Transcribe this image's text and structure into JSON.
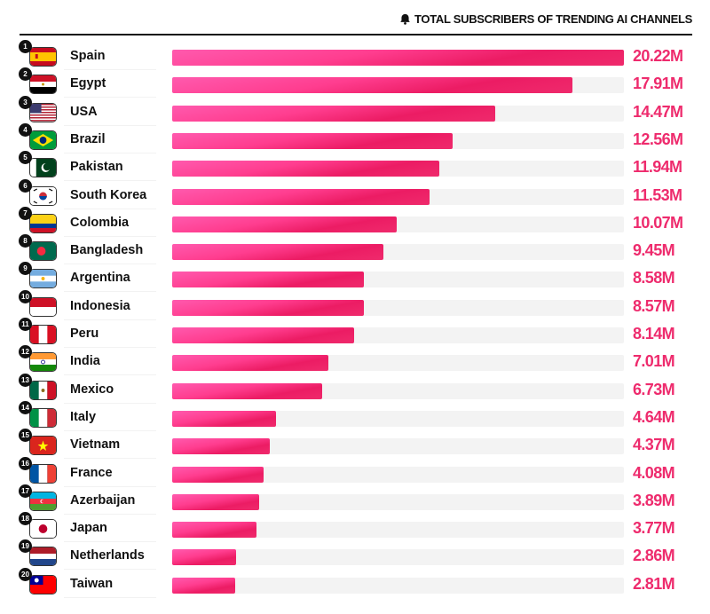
{
  "header": {
    "title": "TOTAL SUBSCRIBERS OF TRENDING AI CHANNELS",
    "icon": "bell-icon"
  },
  "colors": {
    "bar": "#ee2a6b",
    "value_text": "#ee2b6d",
    "track": "#f3f3f3"
  },
  "chart_data": {
    "type": "bar",
    "orientation": "horizontal",
    "title": "TOTAL SUBSCRIBERS OF TRENDING AI CHANNELS",
    "unit": "M",
    "xlim": [
      0,
      20.22
    ],
    "categories": [
      "Spain",
      "Egypt",
      "USA",
      "Brazil",
      "Pakistan",
      "South Korea",
      "Colombia",
      "Bangladesh",
      "Argentina",
      "Indonesia",
      "Peru",
      "India",
      "Mexico",
      "Italy",
      "Vietnam",
      "France",
      "Azerbaijan",
      "Japan",
      "Netherlands",
      "Taiwan"
    ],
    "values": [
      20.22,
      17.91,
      14.47,
      12.56,
      11.94,
      11.53,
      10.07,
      9.45,
      8.58,
      8.57,
      8.14,
      7.01,
      6.73,
      4.64,
      4.37,
      4.08,
      3.89,
      3.77,
      2.86,
      2.81
    ],
    "labels": [
      "20.22M",
      "17.91M",
      "14.47M",
      "12.56M",
      "11.94M",
      "11.53M",
      "10.07M",
      "9.45M",
      "8.58M",
      "8.57M",
      "8.14M",
      "7.01M",
      "6.73M",
      "4.64M",
      "4.37M",
      "4.08M",
      "3.89M",
      "3.77M",
      "2.86M",
      "2.81M"
    ],
    "ranks": [
      "1",
      "2",
      "3",
      "4",
      "5",
      "6",
      "7",
      "8",
      "9",
      "10",
      "11",
      "12",
      "13",
      "14",
      "15",
      "16",
      "17",
      "18",
      "19",
      "20"
    ]
  }
}
